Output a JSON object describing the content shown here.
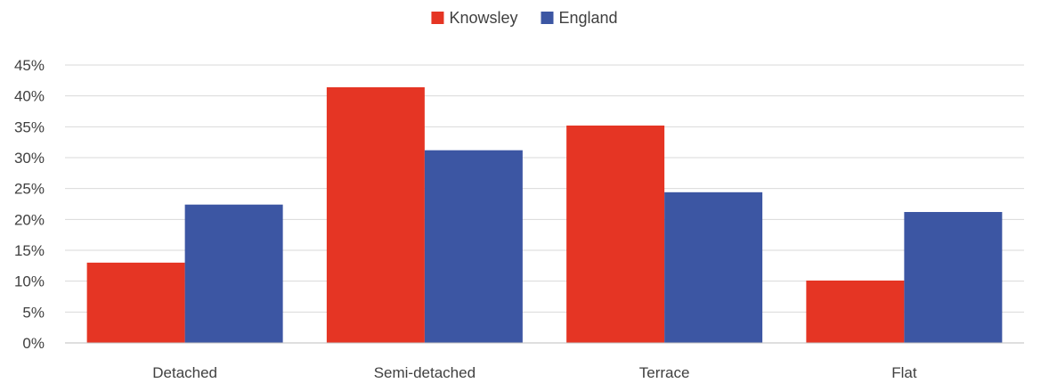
{
  "chart_data": {
    "type": "bar",
    "categories": [
      "Detached",
      "Semi-detached",
      "Terrace",
      "Flat"
    ],
    "series": [
      {
        "name": "Knowsley",
        "values": [
          13.0,
          41.4,
          35.2,
          10.1
        ],
        "color": "#e53524"
      },
      {
        "name": "England",
        "values": [
          22.4,
          31.2,
          24.4,
          21.2
        ],
        "color": "#3c56a3"
      }
    ],
    "ylim": [
      0,
      45
    ],
    "yticks": [
      0,
      5,
      10,
      15,
      20,
      25,
      30,
      35,
      40,
      45
    ],
    "ytick_format": "percent",
    "grid": true,
    "legend_position": "top-center",
    "title": "",
    "xlabel": "",
    "ylabel": ""
  }
}
